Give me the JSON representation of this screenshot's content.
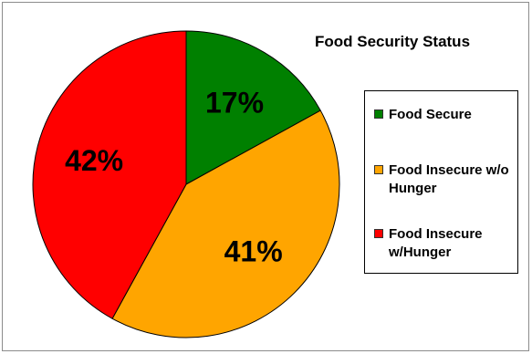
{
  "chart_data": {
    "type": "pie",
    "title": "Food Security Status",
    "categories": [
      "Food Secure",
      "Food Insecure w/o Hunger",
      "Food Insecure w/Hunger"
    ],
    "values": [
      17,
      41,
      42
    ],
    "labels": [
      "17%",
      "41%",
      "42%"
    ],
    "colors": [
      "#008000",
      "#FFA500",
      "#FF0000"
    ],
    "legend": {
      "placement": "right",
      "entries": [
        "Food Secure",
        "Food Insecure w/o Hunger",
        "Food Insecure w/Hunger"
      ]
    }
  }
}
